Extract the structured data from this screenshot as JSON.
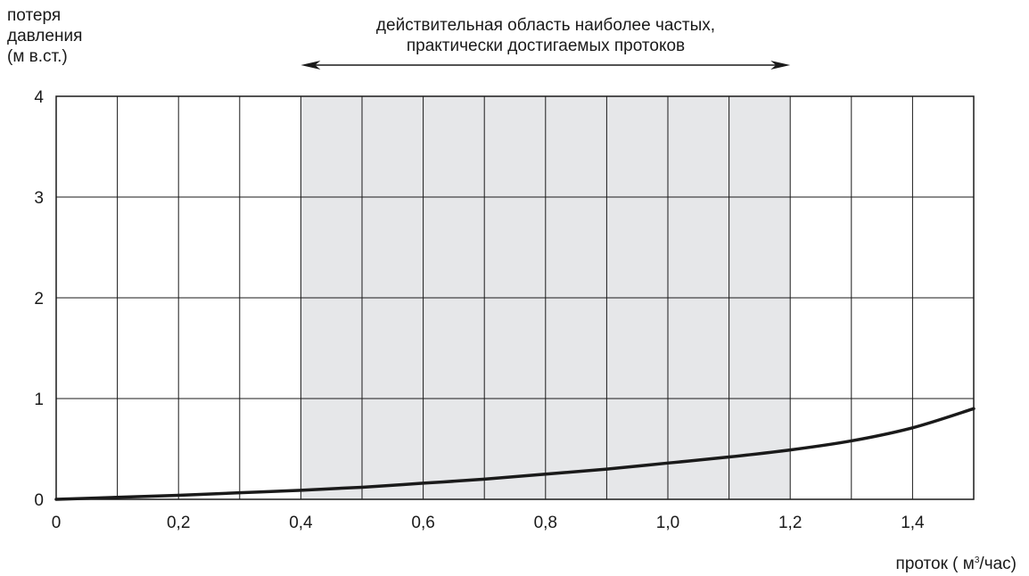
{
  "chart_data": {
    "type": "line",
    "ylabel_lines": [
      "потеря",
      "давления",
      "(м в.ст.)"
    ],
    "xlabel": {
      "prefix": "проток ( м",
      "sup": "3",
      "suffix": "/час)"
    },
    "annotation_lines": [
      "действительная область наиболее частых,",
      "практически достигаемых протоков"
    ],
    "xlim": [
      0,
      1.5
    ],
    "ylim": [
      0,
      4
    ],
    "x_ticks": [
      0,
      0.2,
      0.4,
      0.6,
      0.8,
      1.0,
      1.2,
      1.4
    ],
    "x_tick_labels": [
      "0",
      "0,2",
      "0,4",
      "0,6",
      "0,8",
      "1,0",
      "1,2",
      "1,4"
    ],
    "y_ticks": [
      0,
      1,
      2,
      3,
      4
    ],
    "y_tick_labels": [
      "0",
      "1",
      "2",
      "3",
      "4"
    ],
    "x_gridlines": [
      0.1,
      0.2,
      0.3,
      0.4,
      0.5,
      0.6,
      0.7,
      0.8,
      0.9,
      1.0,
      1.1,
      1.2,
      1.3,
      1.4
    ],
    "y_gridlines": [
      1,
      2,
      3
    ],
    "highlight_region": {
      "x_start": 0.4,
      "x_end": 1.2,
      "color": "#e6e7e9"
    },
    "grid": true,
    "series": [
      {
        "color": "#1a1a1a",
        "x": [
          0,
          0.1,
          0.2,
          0.3,
          0.4,
          0.5,
          0.6,
          0.7,
          0.8,
          0.9,
          1.0,
          1.1,
          1.2,
          1.3,
          1.4,
          1.5
        ],
        "y": [
          0,
          0.02,
          0.04,
          0.065,
          0.09,
          0.12,
          0.16,
          0.2,
          0.25,
          0.3,
          0.36,
          0.42,
          0.49,
          0.58,
          0.71,
          0.9
        ]
      }
    ]
  }
}
